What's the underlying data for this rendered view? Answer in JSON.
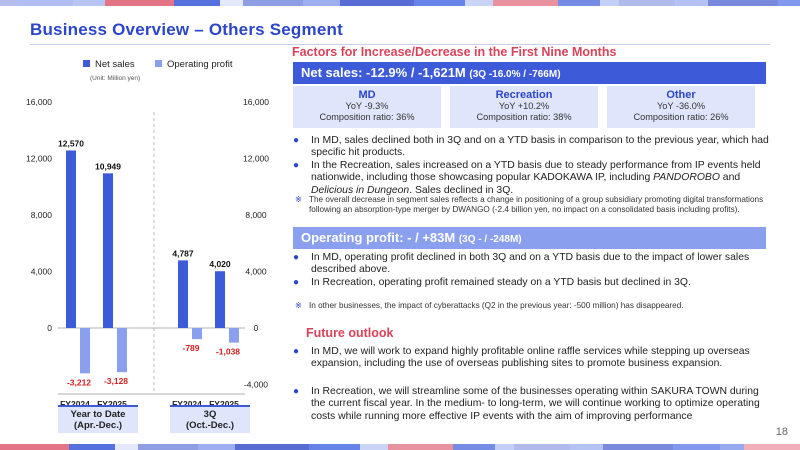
{
  "header": {
    "title": "Business Overview – Others Segment"
  },
  "factors": {
    "heading": "Factors for Increase/Decrease in the First Nine Months",
    "net_sales_banner": "Net sales: -12.9% / -1,621M",
    "net_sales_banner_small": "(3Q -16.0% / -766M)",
    "boxes": [
      {
        "title": "MD",
        "yoy": "YoY -9.3%",
        "ratio": "Composition ratio: 36%"
      },
      {
        "title": "Recreation",
        "yoy": "YoY +10.2%",
        "ratio": "Composition ratio: 38%"
      },
      {
        "title": "Other",
        "yoy": "YoY -36.0%",
        "ratio": "Composition ratio: 26%"
      }
    ],
    "sales_bullets": [
      "In MD, sales declined both in 3Q and on a YTD basis in comparison to the previous year, which had specific hit products.",
      "In the Recreation, sales increased on a YTD basis due to steady performance from IP events held nationwide, including those showcasing popular KADOKAWA IP, including ",
      "PANDOROBO",
      " and ",
      "Delicious in Dungeon",
      ". Sales declined in 3Q."
    ],
    "sales_note": "The overall decrease in segment sales reflects a change in positioning of a group subsidiary promoting digital transformations following an absorption-type merger by DWANGO (-2.4 billion yen, no impact on a consolidated basis including profits).",
    "op_banner": "Operating profit: - / +83M",
    "op_banner_small": "(3Q - / -248M)",
    "op_bullets": [
      "In MD, operating profit declined in both 3Q and on a YTD basis due to the impact of lower sales described above.",
      "In Recreation, operating profit remained steady on a YTD basis but declined in 3Q."
    ],
    "op_note": "In other businesses, the impact of cyberattacks (Q2 in the previous year: -500 million) has disappeared.",
    "bullet_symbol": "●",
    "note_symbol": "※"
  },
  "outlook": {
    "heading": "Future outlook",
    "bullets": [
      "In MD, we will work to expand highly profitable online raffle services while stepping up overseas expansion, including the use of overseas publishing sites to promote business expansion.",
      "In Recreation, we will streamline some of the businesses operating within SAKURA TOWN during the current fiscal year. In the medium- to long-term, we will continue working to optimize operating costs while running more effective IP events with the aim of improving performance"
    ]
  },
  "page_number": "18",
  "colors": {
    "accent": "#2b46c9",
    "net_sales": "#3d5bd9",
    "operating_profit": "#8aa0ee",
    "heading_red": "#d9435a",
    "neg_label": "#d62020"
  },
  "chart_data": {
    "type": "bar",
    "unit_note": "(Unit: Million yen)",
    "categories": [
      "FY2024",
      "FY2025",
      "FY2024",
      "FY2025"
    ],
    "groups": [
      {
        "label": "Year to Date\n(Apr.-Dec.)",
        "label_line1": "Year to Date",
        "label_line2": "(Apr.-Dec.)"
      },
      {
        "label": "3Q\n(Oct.-Dec.)",
        "label_line1": "3Q",
        "label_line2": "(Oct.-Dec.)"
      }
    ],
    "series": [
      {
        "name": "Net sales",
        "axis": "left",
        "values": [
          12570,
          10949,
          4787,
          4020
        ],
        "labels": [
          "12,570",
          "10,949",
          "4,787",
          "4,020"
        ]
      },
      {
        "name": "Operating profit",
        "axis": "right",
        "values": [
          -3212,
          -3128,
          -789,
          -1038
        ],
        "labels": [
          "-3,212",
          "-3,128",
          "-789",
          "-1,038"
        ]
      }
    ],
    "left_axis": {
      "range": [
        0,
        16000
      ],
      "ticks": [
        "0",
        "4,000",
        "8,000",
        "12,000",
        "16,000"
      ],
      "tick_values": [
        0,
        4000,
        8000,
        12000,
        16000
      ]
    },
    "right_axis": {
      "range": [
        -4000,
        16000
      ],
      "ticks": [
        "-4,000",
        "0",
        "4,000",
        "8,000",
        "12,000",
        "16,000"
      ],
      "tick_values": [
        -4000,
        0,
        4000,
        8000,
        12000,
        16000
      ]
    },
    "legend": "top"
  }
}
